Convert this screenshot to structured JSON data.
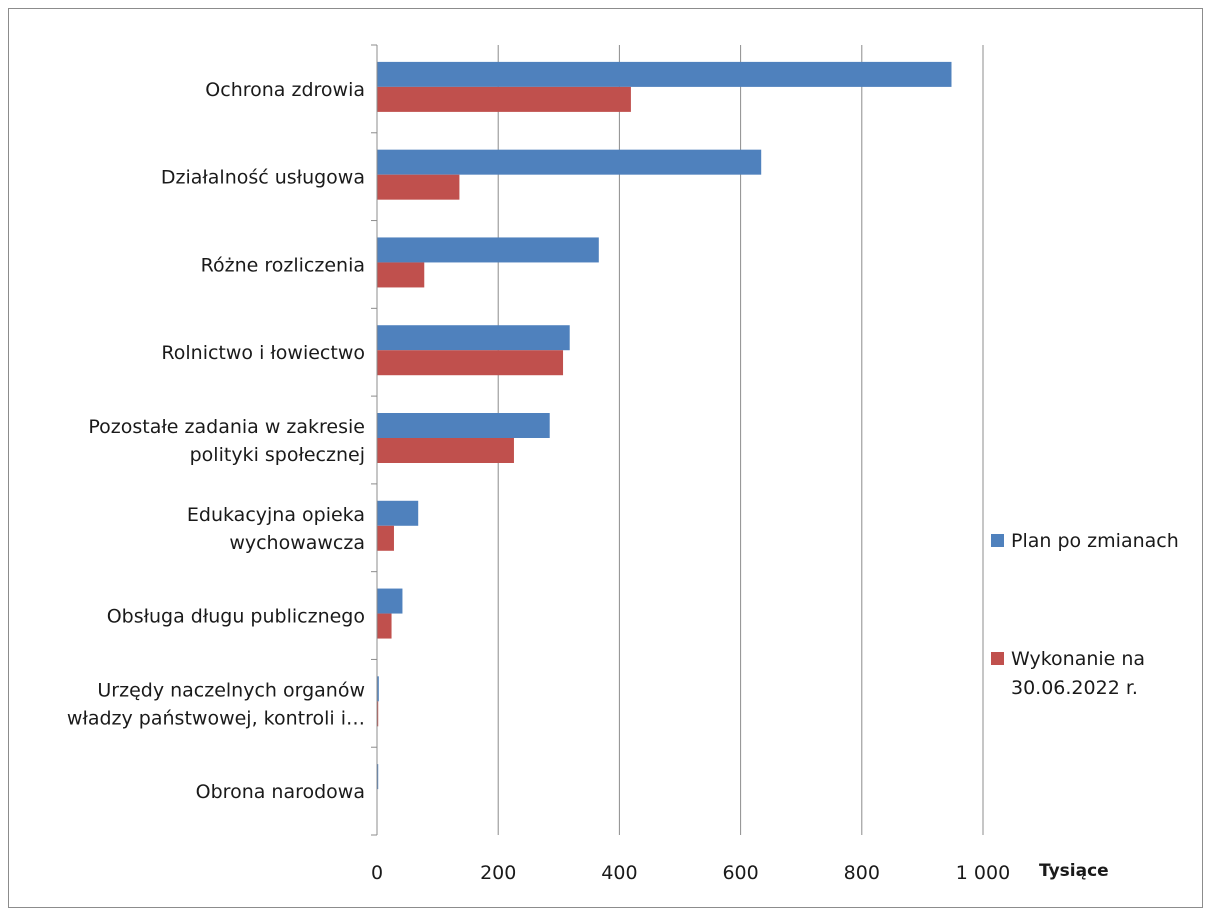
{
  "chart_data": {
    "type": "bar",
    "orientation": "horizontal",
    "categories": [
      [
        "Ochrona zdrowia"
      ],
      [
        "Działalność usługowa"
      ],
      [
        "Różne rozliczenia"
      ],
      [
        "Rolnictwo i łowiectwo"
      ],
      [
        "Pozostałe zadania w zakresie",
        "polityki społecznej"
      ],
      [
        "Edukacyjna opieka",
        "wychowawcza"
      ],
      [
        "Obsługa długu publicznego"
      ],
      [
        "Urzędy naczelnych organów",
        "władzy państwowej, kontroli i…"
      ],
      [
        "Obrona narodowa"
      ]
    ],
    "series": [
      {
        "name": "Plan po zmianach",
        "color": "#4f81bd",
        "values": [
          948,
          634,
          366,
          318,
          285,
          68,
          42,
          3,
          2
        ]
      },
      {
        "name": "Wykonanie na 30.06.2022 r.",
        "legend_lines": [
          "Wykonanie na",
          "30.06.2022 r."
        ],
        "color": "#c0504d",
        "values": [
          419,
          136,
          78,
          307,
          226,
          28,
          24,
          2,
          0
        ]
      }
    ],
    "xlim": [
      0,
      1000
    ],
    "xticks": [
      0,
      200,
      400,
      600,
      800,
      1000
    ],
    "xtick_labels": [
      "0",
      "200",
      "400",
      "600",
      "800",
      "1 000"
    ],
    "x_unit": "Tysiące",
    "grid": "vertical",
    "legend": "right"
  }
}
